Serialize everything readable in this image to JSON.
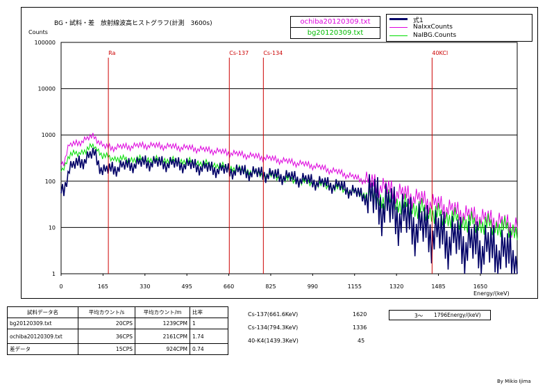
{
  "chart_data": {
    "type": "line",
    "title": "BG・試料・差　放射線波高ヒストグラフ(計測　3600s)",
    "ylabel": "Counts",
    "xlabel": "Energy/(keV)",
    "ylog": true,
    "ylim": [
      1,
      100000
    ],
    "xlim": [
      0,
      1795
    ],
    "x_ticks": [
      "0",
      "165",
      "330",
      "495",
      "660",
      "825",
      "990",
      "1155",
      "1320",
      "1485",
      "1650"
    ],
    "y_ticks": [
      "1",
      "10",
      "100",
      "1000",
      "10000",
      "100000"
    ],
    "grid": true,
    "legend_position": "top-right",
    "files": [
      "ochiba20120309.txt",
      "bg20120309.txt"
    ],
    "series": [
      {
        "name": "NaIxxCounts",
        "color": "#dd00dd",
        "x": [
          10,
          30,
          60,
          100,
          130,
          150,
          165,
          200,
          250,
          330,
          400,
          500,
          600,
          700,
          800,
          900,
          1000,
          1100,
          1200,
          1300,
          1400,
          1500,
          1600,
          1700,
          1795
        ],
        "y": [
          250,
          580,
          650,
          800,
          950,
          700,
          560,
          530,
          550,
          590,
          570,
          520,
          450,
          380,
          320,
          260,
          210,
          150,
          100,
          62,
          42,
          28,
          18,
          14,
          10
        ]
      },
      {
        "name": "NaIBG.Counts",
        "color": "#00dd00",
        "x": [
          10,
          30,
          60,
          100,
          130,
          150,
          165,
          200,
          250,
          330,
          400,
          500,
          600,
          700,
          800,
          900,
          1000,
          1100,
          1200,
          1300,
          1400,
          1500,
          1600,
          1700,
          1795
        ],
        "y": [
          190,
          360,
          400,
          470,
          600,
          440,
          350,
          320,
          300,
          300,
          290,
          270,
          230,
          180,
          140,
          110,
          90,
          70,
          50,
          36,
          26,
          18,
          13,
          11,
          9
        ]
      },
      {
        "name": "式1",
        "color": "#000066",
        "x": [
          10,
          30,
          60,
          100,
          130,
          150,
          165,
          200,
          250,
          330,
          400,
          500,
          600,
          700,
          800,
          900,
          1000,
          1100,
          1200,
          1300,
          1400,
          1500,
          1600,
          1700,
          1795
        ],
        "y": [
          60,
          180,
          230,
          300,
          400,
          230,
          160,
          180,
          210,
          250,
          240,
          220,
          180,
          160,
          140,
          120,
          95,
          75,
          45,
          22,
          10,
          6,
          4,
          3,
          2
        ]
      }
    ],
    "markers": [
      {
        "label": "Ra",
        "x": 186
      },
      {
        "label": "Cs-137",
        "x": 662
      },
      {
        "label": "Cs-134",
        "x": 796
      },
      {
        "label": "40KCl",
        "x": 1460
      }
    ]
  },
  "table": {
    "headers": [
      "試料データ名",
      "平均カウント/s",
      "平均カウント/m",
      "比率"
    ],
    "rows": [
      [
        "bg20120309.txt",
        "20CPS",
        "1239CPM",
        "1"
      ],
      [
        "ochiba20120309.txt",
        "36CPS",
        "2161CPM",
        "1.74"
      ],
      [
        "差データ",
        "15CPS",
        "924CPM",
        "0.74"
      ]
    ]
  },
  "isotopes": [
    {
      "label": "Cs-137(661.6KeV)",
      "value": "1620"
    },
    {
      "label": "Cs-134(794.3KeV)",
      "value": "1336"
    },
    {
      "label": "40-K4(1439.3KeV)",
      "value": "45"
    }
  ],
  "range": {
    "from": "3～",
    "to": "1796Energy/(keV)"
  },
  "author": "By Mikio Ijima",
  "colors": {
    "marker": "#cc0000",
    "file1": "#dd00dd",
    "file2": "#00cc00"
  }
}
